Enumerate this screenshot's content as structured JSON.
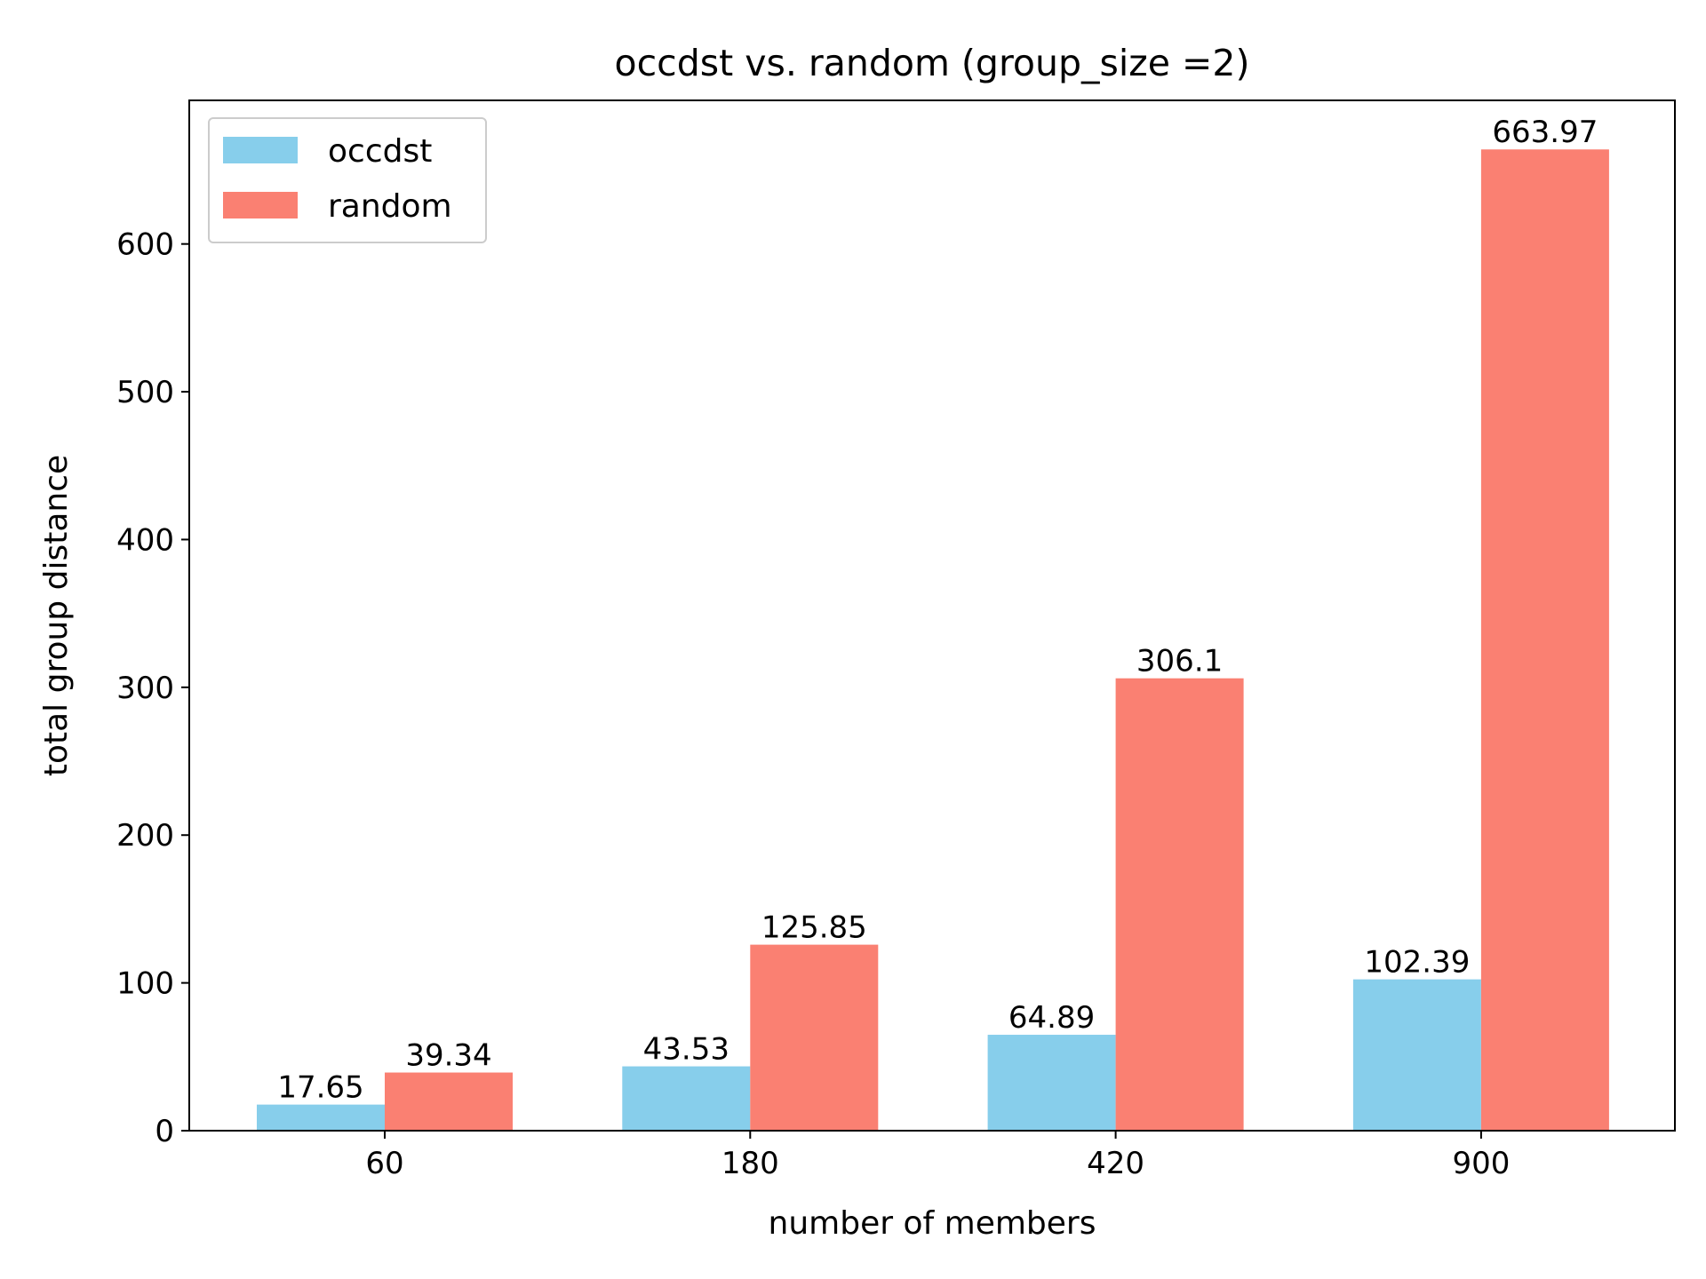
{
  "chart_data": {
    "type": "bar",
    "title": "occdst vs. random (group_size =2)",
    "xlabel": "number of members",
    "ylabel": "total group distance",
    "categories": [
      "60",
      "180",
      "420",
      "900"
    ],
    "series": [
      {
        "name": "occdst",
        "color": "#87CEEB",
        "values": [
          17.65,
          43.53,
          64.89,
          102.39
        ],
        "labels": [
          "17.65",
          "43.53",
          "64.89",
          "102.39"
        ]
      },
      {
        "name": "random",
        "color": "#FA8072",
        "values": [
          39.34,
          125.85,
          306.1,
          663.97
        ],
        "labels": [
          "39.34",
          "125.85",
          "306.1",
          "663.97"
        ]
      }
    ],
    "ylim": [
      0,
      697.17
    ],
    "yticks": [
      0,
      100,
      200,
      300,
      400,
      500,
      600
    ],
    "grid": false,
    "legend": "top-left"
  }
}
